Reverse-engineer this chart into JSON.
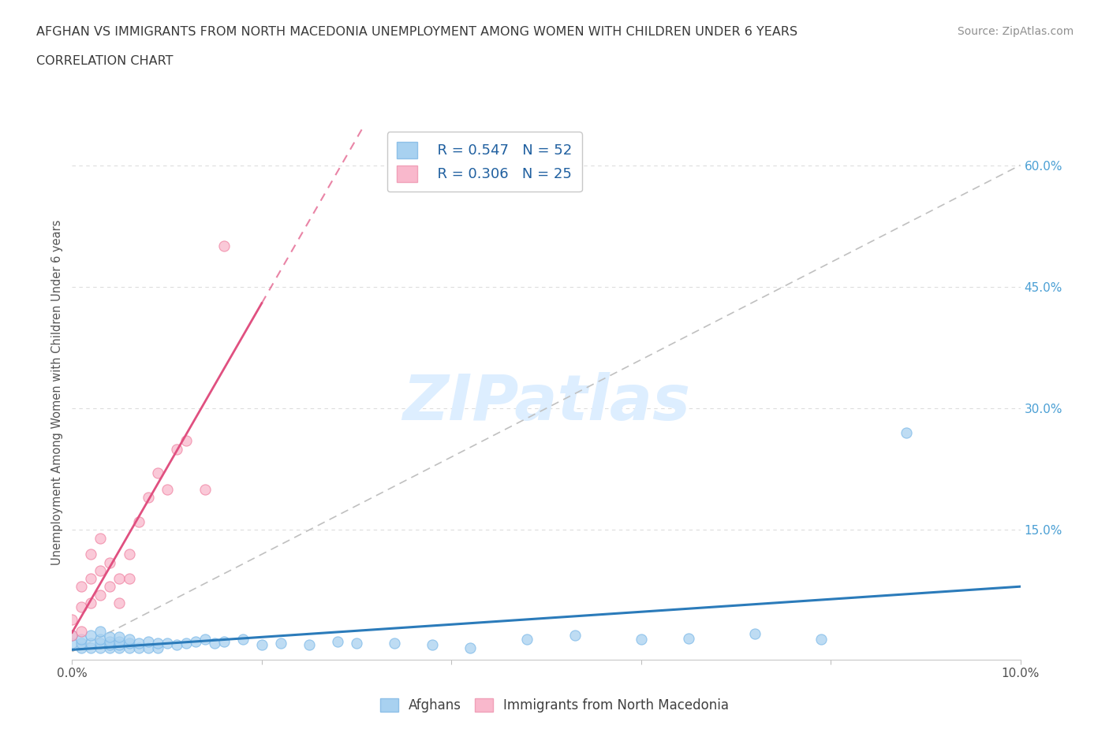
{
  "title_line1": "AFGHAN VS IMMIGRANTS FROM NORTH MACEDONIA UNEMPLOYMENT AMONG WOMEN WITH CHILDREN UNDER 6 YEARS",
  "title_line2": "CORRELATION CHART",
  "source": "Source: ZipAtlas.com",
  "ylabel": "Unemployment Among Women with Children Under 6 years",
  "xlim": [
    0.0,
    0.1
  ],
  "ylim": [
    -0.01,
    0.65
  ],
  "yticks_right": [
    0.15,
    0.3,
    0.45,
    0.6
  ],
  "ytick_right_labels": [
    "15.0%",
    "30.0%",
    "45.0%",
    "60.0%"
  ],
  "afghan_color": "#a8d1f0",
  "afghan_color_edge": "#7ab8e8",
  "afghan_line_color": "#2b7bba",
  "macedonia_color": "#f9b8cc",
  "macedonia_color_edge": "#f080a0",
  "macedonia_line_color": "#e05080",
  "afghan_R": 0.547,
  "afghan_N": 52,
  "macedonia_R": 0.306,
  "macedonia_N": 25,
  "watermark": "ZIPatlas",
  "watermark_color": "#ddeeff",
  "afghans_x": [
    0.0,
    0.0,
    0.001,
    0.001,
    0.001,
    0.002,
    0.002,
    0.002,
    0.003,
    0.003,
    0.003,
    0.003,
    0.004,
    0.004,
    0.004,
    0.004,
    0.005,
    0.005,
    0.005,
    0.005,
    0.006,
    0.006,
    0.006,
    0.007,
    0.007,
    0.008,
    0.008,
    0.009,
    0.009,
    0.01,
    0.011,
    0.012,
    0.013,
    0.014,
    0.015,
    0.016,
    0.018,
    0.02,
    0.022,
    0.025,
    0.028,
    0.03,
    0.034,
    0.038,
    0.042,
    0.048,
    0.053,
    0.06,
    0.065,
    0.072,
    0.079,
    0.088
  ],
  "afghans_y": [
    0.01,
    0.02,
    0.005,
    0.01,
    0.015,
    0.005,
    0.01,
    0.02,
    0.005,
    0.01,
    0.015,
    0.025,
    0.005,
    0.008,
    0.012,
    0.018,
    0.005,
    0.008,
    0.012,
    0.018,
    0.005,
    0.01,
    0.015,
    0.005,
    0.01,
    0.005,
    0.012,
    0.005,
    0.01,
    0.01,
    0.008,
    0.01,
    0.012,
    0.015,
    0.01,
    0.012,
    0.015,
    0.008,
    0.01,
    0.008,
    0.012,
    0.01,
    0.01,
    0.008,
    0.005,
    0.015,
    0.02,
    0.015,
    0.016,
    0.022,
    0.015,
    0.27
  ],
  "macedonia_x": [
    0.0,
    0.0,
    0.001,
    0.001,
    0.001,
    0.002,
    0.002,
    0.002,
    0.003,
    0.003,
    0.003,
    0.004,
    0.004,
    0.005,
    0.005,
    0.006,
    0.006,
    0.007,
    0.008,
    0.009,
    0.01,
    0.011,
    0.012,
    0.014,
    0.016
  ],
  "macedonia_y": [
    0.02,
    0.04,
    0.025,
    0.055,
    0.08,
    0.06,
    0.09,
    0.12,
    0.07,
    0.1,
    0.14,
    0.08,
    0.11,
    0.06,
    0.09,
    0.09,
    0.12,
    0.16,
    0.19,
    0.22,
    0.2,
    0.25,
    0.26,
    0.2,
    0.5
  ],
  "background_color": "#ffffff",
  "grid_color": "#dddddd",
  "title_color": "#3a3a3a",
  "axis_label_color": "#555555",
  "right_tick_color": "#4a9fd4",
  "legend_color": "#2060a0"
}
